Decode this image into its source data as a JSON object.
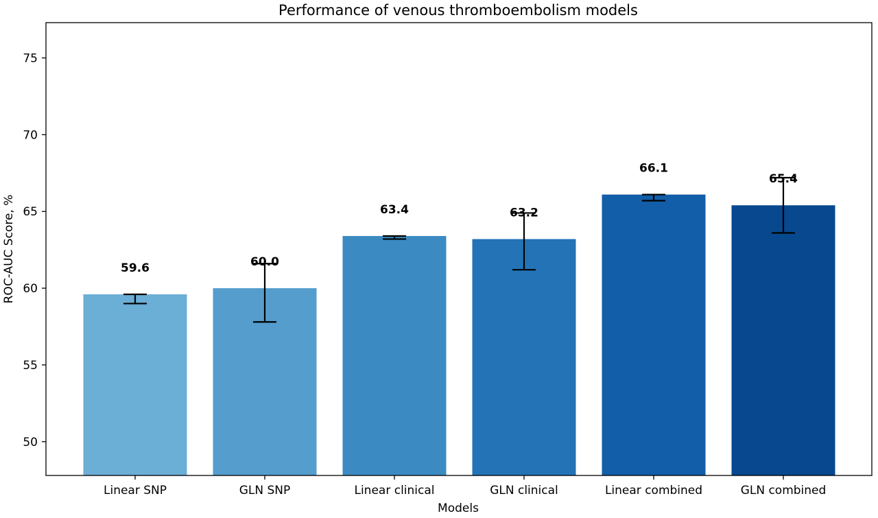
{
  "chart_data": {
    "type": "bar",
    "title": "Performance of venous thromboembolism models",
    "xlabel": "Models",
    "ylabel": "ROC-AUC Score, %",
    "categories": [
      "Linear SNP",
      "GLN SNP",
      "Linear clinical",
      "GLN clinical",
      "Linear combined",
      "GLN combined"
    ],
    "values": [
      59.6,
      60.0,
      63.4,
      63.2,
      66.1,
      65.4
    ],
    "value_labels": [
      "59.6",
      "60.0",
      "63.4",
      "63.2",
      "66.1",
      "65.4"
    ],
    "error_low": [
      59.0,
      57.8,
      63.2,
      61.2,
      65.7,
      63.6
    ],
    "error_high": [
      59.6,
      61.6,
      63.4,
      64.9,
      66.1,
      67.2
    ],
    "ylim": [
      47.8,
      77.3
    ],
    "yticks": [
      50,
      55,
      60,
      65,
      70,
      75
    ],
    "ytick_labels": [
      "50",
      "55",
      "60",
      "65",
      "70",
      "75"
    ],
    "bar_colors": [
      "#6baed6",
      "#549dcd",
      "#3b8bc2",
      "#2373b6",
      "#125ea8",
      "#08488e"
    ],
    "grid": false,
    "legend": "none"
  }
}
